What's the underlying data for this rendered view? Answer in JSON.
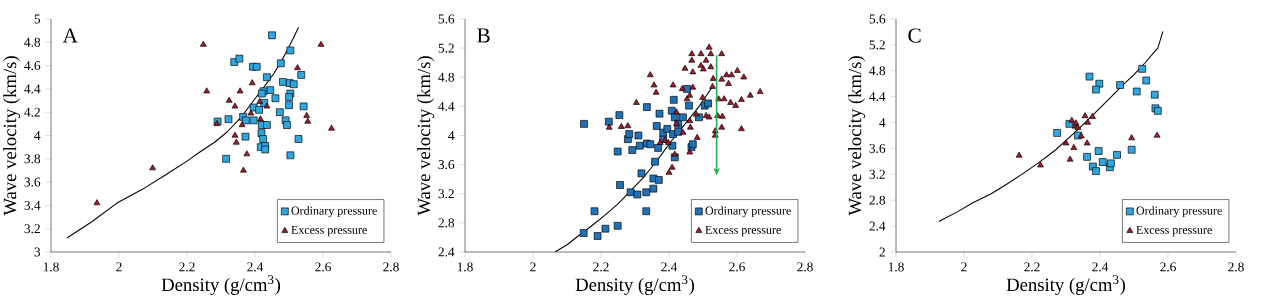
{
  "chart_data": [
    {
      "type": "scatter",
      "title": "A",
      "xlabel": "Density (g/cm$^{3}$)",
      "ylabel": "Wave velocity (km/s)",
      "xlim": [
        1.8,
        2.8
      ],
      "ylim": [
        3,
        5
      ],
      "xticks": [
        1.8,
        2,
        2.2,
        2.4,
        2.6,
        2.8
      ],
      "yticks": [
        3,
        3.2,
        3.4,
        3.6,
        3.8,
        4,
        4.2,
        4.4,
        4.6,
        4.8,
        5
      ],
      "legend": "bottom right",
      "grid": false,
      "series": [
        {
          "name": "Ordinary pressure",
          "type": "scatter",
          "marker": "square",
          "color": "#2ea7e0",
          "x": [
            2.45,
            2.504,
            2.339,
            2.354,
            2.476,
            2.394,
            2.405,
            2.435,
            2.536,
            2.482,
            2.502,
            2.514,
            2.445,
            2.425,
            2.42,
            2.504,
            2.5,
            2.46,
            2.427,
            2.396,
            2.412,
            2.473,
            2.5,
            2.543,
            2.365,
            2.373,
            2.396,
            2.29,
            2.322,
            2.49,
            2.494,
            2.42,
            2.435,
            2.372,
            2.419,
            2.424,
            2.417,
            2.43,
            2.43,
            2.528,
            2.504,
            2.315
          ],
          "values": [
            4.86,
            4.73,
            4.63,
            4.66,
            4.62,
            4.59,
            4.59,
            4.5,
            4.52,
            4.46,
            4.45,
            4.44,
            4.39,
            4.38,
            4.36,
            4.36,
            4.33,
            4.32,
            4.28,
            4.24,
            4.22,
            4.2,
            4.26,
            4.25,
            4.16,
            4.13,
            4.13,
            4.12,
            4.14,
            4.13,
            4.09,
            4.09,
            4.09,
            3.99,
            4.02,
            3.97,
            3.9,
            3.91,
            3.88,
            3.97,
            3.83,
            3.8
          ]
        },
        {
          "name": "Excess pressure",
          "type": "scatter",
          "marker": "triangle",
          "color": "#a31a2a",
          "x": [
            1.935,
            2.099,
            2.248,
            2.258,
            2.288,
            2.324,
            2.341,
            2.356,
            2.392,
            2.341,
            2.345,
            2.362,
            2.376,
            2.366,
            2.388,
            2.414,
            2.416,
            2.435,
            2.525,
            2.594,
            2.552,
            2.555,
            2.625
          ],
          "values": [
            3.42,
            3.72,
            4.78,
            4.38,
            4.1,
            4.3,
            4.25,
            4.38,
            4.45,
            4.0,
            3.94,
            4.09,
            3.84,
            3.7,
            4.19,
            4.29,
            4.14,
            4.25,
            4.58,
            4.78,
            4.17,
            4.12,
            4.06
          ]
        },
        {
          "type": "line",
          "marker": "none",
          "color": "#000000",
          "x": [
            1.847,
            1.92,
            1.994,
            2.07,
            2.141,
            2.2,
            2.239,
            2.28,
            2.318,
            2.36,
            2.396,
            2.43,
            2.455,
            2.48,
            2.494,
            2.512,
            2.528
          ],
          "values": [
            3.12,
            3.26,
            3.42,
            3.54,
            3.67,
            3.78,
            3.86,
            3.94,
            4.03,
            4.16,
            4.3,
            4.43,
            4.53,
            4.65,
            4.73,
            4.83,
            4.93
          ]
        }
      ]
    },
    {
      "type": "scatter",
      "title": "B",
      "xlabel": "Density (g/cm$^{3}$)",
      "ylabel": "Wave velocity (km/s)",
      "xlim": [
        1.8,
        2.8
      ],
      "ylim": [
        2.4,
        5.6
      ],
      "xticks": [
        1.8,
        2,
        2.2,
        2.4,
        2.6,
        2.8
      ],
      "yticks": [
        2.4,
        2.8,
        3.2,
        3.6,
        4,
        4.4,
        4.8,
        5.2,
        5.6
      ],
      "legend": "bottom right",
      "grid": false,
      "series": [
        {
          "name": "Ordinary pressure",
          "type": "scatter",
          "marker": "square",
          "color": "#1f72b8",
          "x": [
            2.15,
            2.223,
            2.254,
            2.249,
            2.256,
            2.181,
            2.149,
            2.19,
            2.213,
            2.249,
            2.279,
            2.292,
            2.283,
            2.31,
            2.314,
            2.335,
            2.345,
            2.287,
            2.307,
            2.333,
            2.319,
            2.333,
            2.335,
            2.354,
            2.354,
            2.359,
            2.364,
            2.368,
            2.372,
            2.37,
            2.383,
            2.383,
            2.395,
            2.414,
            2.408,
            2.412,
            2.417,
            2.41,
            2.417,
            2.427,
            2.427,
            2.441,
            2.453,
            2.459,
            2.466,
            2.47,
            2.488,
            2.505,
            2.515
          ],
          "values": [
            4.16,
            4.19,
            4.28,
            3.78,
            3.32,
            2.96,
            2.66,
            2.62,
            2.72,
            2.76,
            3.95,
            3.8,
            4.02,
            4.0,
            3.86,
            3.89,
            3.88,
            3.22,
            3.19,
            3.22,
            3.48,
            2.96,
            4.39,
            3.27,
            3.41,
            3.64,
            4.13,
            3.83,
            4.3,
            3.39,
            3.95,
            4.04,
            4.09,
            4.49,
            4.34,
            4.02,
            4.25,
            3.86,
            3.7,
            4.05,
            4.16,
            4.25,
            4.64,
            4.41,
            3.84,
            3.88,
            4.25,
            4.41,
            4.44
          ]
        },
        {
          "name": "Excess pressure",
          "type": "scatter",
          "marker": "triangle",
          "color": "#a31a2a",
          "x": [
            2.224,
            2.26,
            2.279,
            2.304,
            2.345,
            2.356,
            2.362,
            2.374,
            2.388,
            2.398,
            2.4,
            2.409,
            2.412,
            2.417,
            2.422,
            2.422,
            2.439,
            2.441,
            2.447,
            2.453,
            2.461,
            2.461,
            2.463,
            2.461,
            2.467,
            2.467,
            2.47,
            2.47,
            2.48,
            2.483,
            2.494,
            2.494,
            2.499,
            2.501,
            2.509,
            2.509,
            2.518,
            2.523,
            2.523,
            2.518,
            2.528,
            2.53,
            2.536,
            2.536,
            2.543,
            2.546,
            2.555,
            2.555,
            2.555,
            2.557,
            2.562,
            2.569,
            2.575,
            2.581,
            2.584,
            2.596,
            2.601,
            2.613,
            2.613,
            2.62,
            2.639,
            2.668
          ],
          "values": [
            4.11,
            4.12,
            4.13,
            4.45,
            4.83,
            4.69,
            4.59,
            3.9,
            3.93,
            3.9,
            3.49,
            3.56,
            4.69,
            3.74,
            4.32,
            4.16,
            4.64,
            4.04,
            4.92,
            4.5,
            4.55,
            4.2,
            4.11,
            3.77,
            5.12,
            5.03,
            4.66,
            4.87,
            4.29,
            3.97,
            5.12,
            4.96,
            4.52,
            4.91,
            4.27,
            5.03,
            5.21,
            5.12,
            4.94,
            4.25,
            4.67,
            4.78,
            4.06,
            4.0,
            4.27,
            4.5,
            5.12,
            4.11,
            4.77,
            4.26,
            4.5,
            4.83,
            4.71,
            4.45,
            4.83,
            4.41,
            4.89,
            4.09,
            4.49,
            4.8,
            4.55,
            4.6
          ]
        },
        {
          "type": "line",
          "marker": "none",
          "color": "#000000",
          "x": [
            2.065,
            2.1,
            2.133,
            2.17,
            2.21,
            2.25,
            2.287,
            2.32,
            2.345,
            2.375,
            2.403,
            2.43,
            2.451,
            2.47,
            2.49,
            2.51,
            2.525
          ],
          "values": [
            2.4,
            2.5,
            2.62,
            2.75,
            2.9,
            3.06,
            3.24,
            3.4,
            3.54,
            3.72,
            3.9,
            4.06,
            4.18,
            4.29,
            4.41,
            4.55,
            4.65
          ]
        }
      ]
    },
    {
      "type": "scatter",
      "title": "C",
      "xlabel": "Density (g/cm$^{3}$)",
      "ylabel": "Wave velocity (km/s)",
      "xlim": [
        1.8,
        2.8
      ],
      "ylim": [
        2,
        5.6
      ],
      "xticks": [
        1.8,
        2,
        2.2,
        2.4,
        2.6,
        2.8
      ],
      "yticks": [
        2,
        2.4,
        2.8,
        3.2,
        3.6,
        4,
        4.4,
        4.8,
        5.2,
        5.6
      ],
      "legend": "bottom right",
      "grid": false,
      "series": [
        {
          "name": "Ordinary pressure",
          "type": "scatter",
          "marker": "square",
          "color": "#2ea7e0",
          "x": [
            2.274,
            2.31,
            2.335,
            2.362,
            2.369,
            2.398,
            2.388,
            2.396,
            2.379,
            2.388,
            2.408,
            2.429,
            2.432,
            2.45,
            2.459,
            2.493,
            2.508,
            2.524,
            2.536,
            2.561,
            2.563,
            2.57
          ],
          "values": [
            3.84,
            3.98,
            3.8,
            3.47,
            4.71,
            4.6,
            4.51,
            3.56,
            3.32,
            3.25,
            3.39,
            3.31,
            3.37,
            3.5,
            4.58,
            3.58,
            4.48,
            4.83,
            4.65,
            4.43,
            4.22,
            4.18
          ]
        },
        {
          "name": "Excess pressure",
          "type": "scatter",
          "marker": "triangle",
          "color": "#a31a2a",
          "x": [
            2.162,
            2.225,
            2.3,
            2.312,
            2.317,
            2.323,
            2.327,
            2.329,
            2.335,
            2.345,
            2.356,
            2.362,
            2.364,
            2.378,
            2.493,
            2.568
          ],
          "values": [
            3.49,
            3.34,
            3.68,
            3.43,
            4.03,
            3.61,
            3.94,
            3.99,
            3.92,
            3.79,
            4.1,
            3.68,
            4.0,
            4.09,
            3.76,
            3.8
          ]
        },
        {
          "type": "line",
          "marker": "none",
          "color": "#000000",
          "x": [
            1.926,
            1.98,
            2.026,
            2.08,
            2.123,
            2.17,
            2.22,
            2.27,
            2.318,
            2.36,
            2.395,
            2.43,
            2.463,
            2.5,
            2.532,
            2.555,
            2.57,
            2.585
          ],
          "values": [
            2.47,
            2.62,
            2.76,
            2.9,
            3.04,
            3.2,
            3.38,
            3.58,
            3.81,
            4.02,
            4.2,
            4.38,
            4.56,
            4.74,
            4.92,
            5.06,
            5.15,
            5.41
          ]
        }
      ]
    }
  ]
}
